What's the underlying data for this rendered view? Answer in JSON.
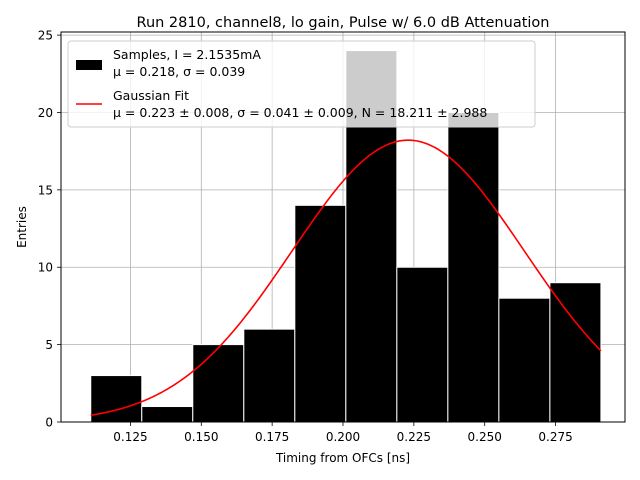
{
  "chart_data": {
    "type": "bar",
    "title": "Run 2810, channel8, lo gain, Pulse w/ 6.0 dB Attenuation",
    "xlabel": "Timing from OFCs [ns]",
    "ylabel": "Entries",
    "xlim": [
      0.1005,
      0.2995
    ],
    "ylim": [
      0,
      25.2
    ],
    "xticks": [
      0.125,
      0.15,
      0.175,
      0.2,
      0.225,
      0.25,
      0.275
    ],
    "xtick_labels": [
      "0.125",
      "0.150",
      "0.175",
      "0.200",
      "0.225",
      "0.250",
      "0.275"
    ],
    "yticks": [
      0,
      5,
      10,
      15,
      20,
      25
    ],
    "ytick_labels": [
      "0",
      "5",
      "10",
      "15",
      "20",
      "25"
    ],
    "grid": true,
    "histogram": {
      "bin_edges": [
        0.111,
        0.129,
        0.147,
        0.165,
        0.183,
        0.201,
        0.219,
        0.237,
        0.255,
        0.273,
        0.291
      ],
      "counts": [
        3,
        1,
        5,
        6,
        14,
        24,
        10,
        20,
        8,
        9
      ],
      "color": "#000000"
    },
    "fit": {
      "function": "gaussian",
      "mu": 0.223,
      "sigma": 0.041,
      "N": 18.211,
      "x_range": [
        0.111,
        0.291
      ],
      "color": "#ff0000"
    },
    "legend": {
      "location": "top-left",
      "entries": [
        {
          "line1": "Samples, I = 2.1535mA",
          "line2": "μ = 0.218, σ = 0.039"
        },
        {
          "line1": "Gaussian Fit",
          "line2": "μ = 0.223 ± 0.008, σ = 0.041 ± 0.009, N = 18.211 ± 2.988"
        }
      ]
    }
  }
}
